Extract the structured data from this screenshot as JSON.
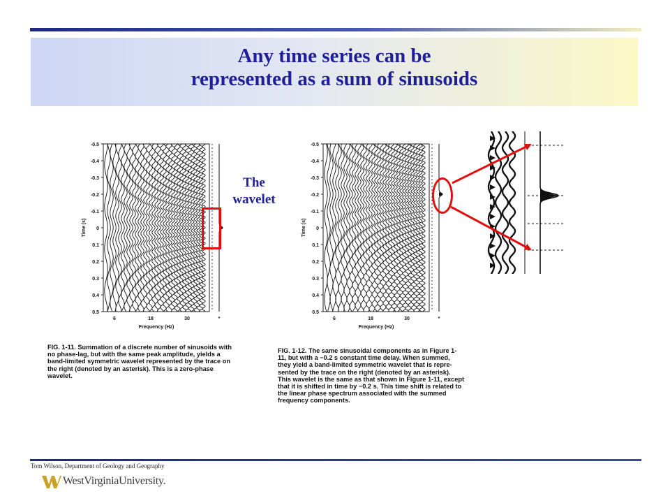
{
  "slide": {
    "title_line1": "Any time series can be",
    "title_line2": "represented as a sum of sinusoids",
    "wavelet_line1": "The",
    "wavelet_line2": "wavelet",
    "footer_credit": "Tom Wilson, Department of Geology and Geography",
    "logo_text": "WestVirginiaUniversity."
  },
  "figures": {
    "time_axis_label": "Time (s)",
    "freq_axis_label": "Frequency (Hz)",
    "y_ticks": [
      "-0.5",
      "-0.4",
      "-0.3",
      "-0.2",
      "-0.1",
      "0",
      "0.1",
      "0.2",
      "0.3",
      "0.4",
      "0.5"
    ],
    "x_ticks": [
      "6",
      "18",
      "30",
      "*"
    ],
    "caption_left": "FIG. 1-11. Summation of a discrete number of sinusoids with\nno phase-lag, but with the same peak amplitude, yields a\nband-limited symmetric wavelet represented by the trace on\nthe right (denoted by an asterisk). This is a zero-phase\nwavelet.",
    "caption_right": "FIG. 1-12. The same sinusoidal components as in Figure 1-\n11, but with a −0.2 s constant time delay. When summed,\nthey yield a band-limited symmetric wavelet that is repre-\nsented by the trace on the right (denoted by an asterisk).\nThis wavelet is the same as that shown in Figure 1-11, except\nthat it is shifted in time by −0.2 s. This time shift is related to\nthe linear phase spectrum associated with the summed\nfrequency components."
  },
  "colors": {
    "title": "#1f1f99",
    "highlight": "#e01010"
  }
}
